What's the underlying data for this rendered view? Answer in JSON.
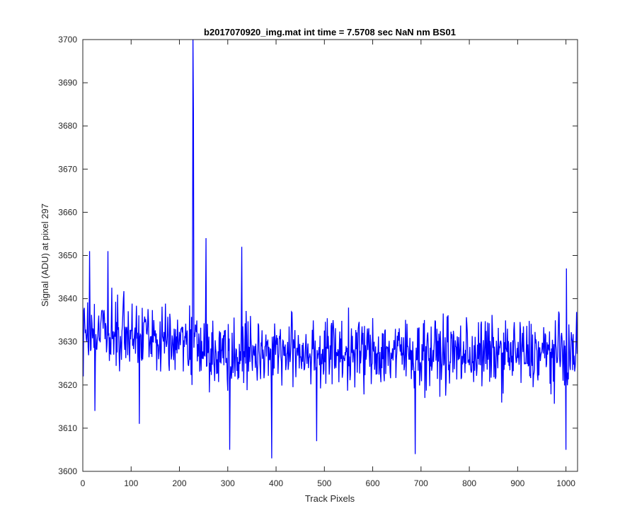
{
  "chart_data": {
    "type": "line",
    "title": "b2017070920_img.mat int time = 7.5708 sec  NaN nm BS01",
    "xlabel": "Track Pixels",
    "ylabel": "Signal (ADU) at pixel 297",
    "xlim": [
      0,
      1024
    ],
    "ylim": [
      3600,
      3700
    ],
    "xticks": [
      "0",
      "100",
      "200",
      "300",
      "400",
      "500",
      "600",
      "700",
      "800",
      "900",
      "1000"
    ],
    "yticks": [
      "3600",
      "3610",
      "3620",
      "3630",
      "3640",
      "3650",
      "3660",
      "3670",
      "3680",
      "3690",
      "3700"
    ],
    "grid": false,
    "legend": "none",
    "color": "#0000ff",
    "series_x": "Track Pixels 1–1024 (one point per pixel)",
    "baseline_mean": {
      "x": [
        0,
        230,
        240,
        1024
      ],
      "y": [
        3632,
        3631,
        3628,
        3627
      ]
    },
    "noise_range": [
      3615,
      3645
    ],
    "notable_points": [
      {
        "x": 1,
        "y": 3622
      },
      {
        "x": 14,
        "y": 3651
      },
      {
        "x": 25,
        "y": 3614
      },
      {
        "x": 52,
        "y": 3651
      },
      {
        "x": 117,
        "y": 3611
      },
      {
        "x": 226,
        "y": 3620
      },
      {
        "x": 228,
        "y": 3700
      },
      {
        "x": 229,
        "y": 3683
      },
      {
        "x": 255,
        "y": 3654
      },
      {
        "x": 304,
        "y": 3605
      },
      {
        "x": 329,
        "y": 3652
      },
      {
        "x": 391,
        "y": 3603
      },
      {
        "x": 484,
        "y": 3607
      },
      {
        "x": 688,
        "y": 3604
      },
      {
        "x": 1000,
        "y": 3605
      },
      {
        "x": 1001,
        "y": 3647
      }
    ]
  }
}
